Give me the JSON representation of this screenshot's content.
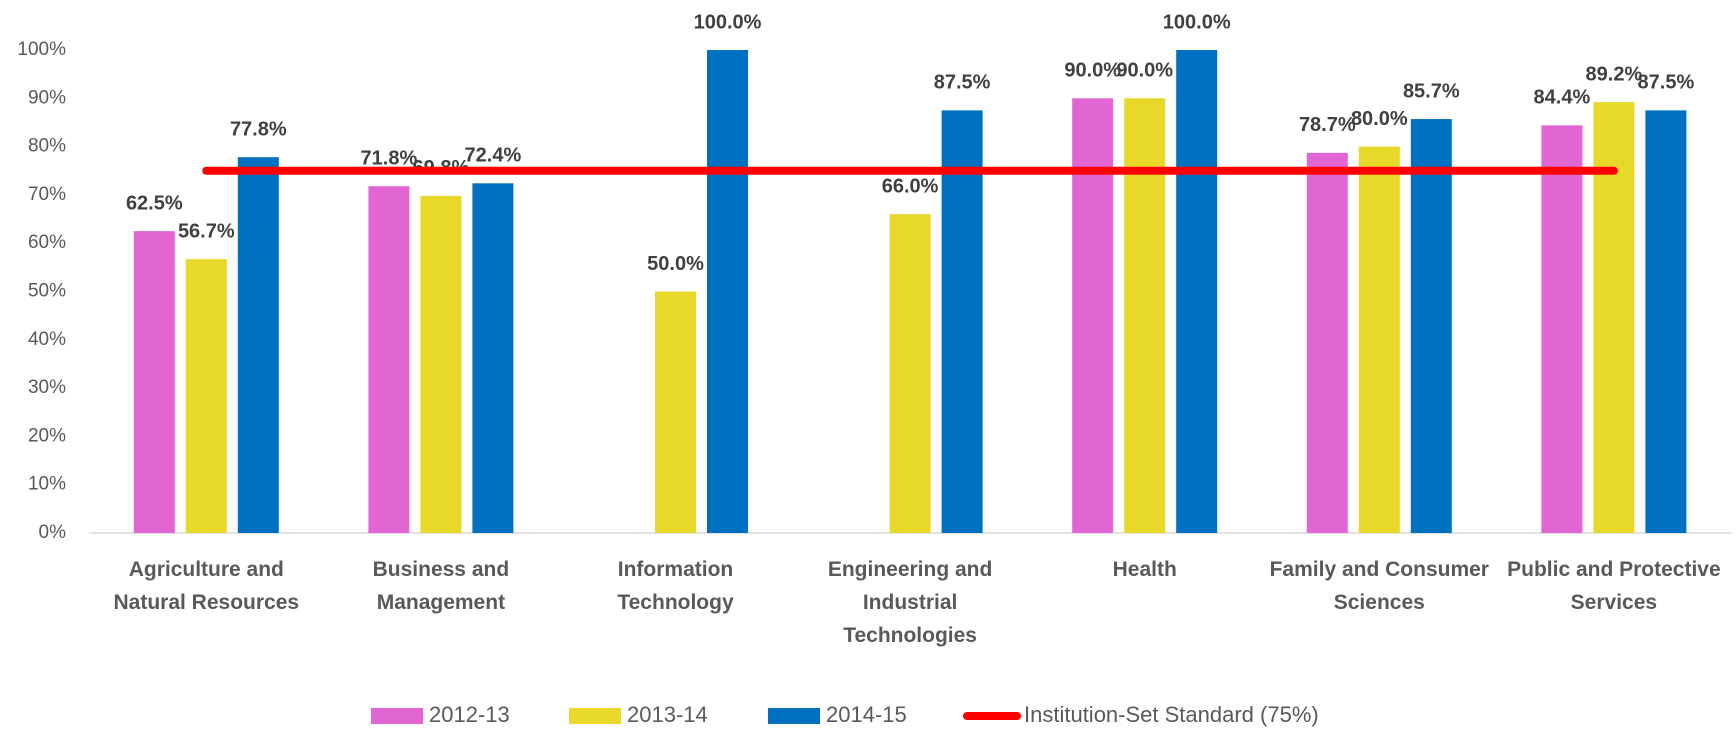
{
  "chart_data": {
    "type": "bar",
    "categories": [
      "Agriculture and Natural Resources",
      "Business and Management",
      "Information Technology",
      "Engineering and Industrial Technologies",
      "Health",
      "Family and Consumer Sciences",
      "Public and Protective Services"
    ],
    "series": [
      {
        "name": "2012-13",
        "color": "#e166d3",
        "values": [
          62.5,
          71.8,
          null,
          null,
          90.0,
          78.7,
          84.4
        ],
        "value_labels": [
          "62.5%",
          "71.8%",
          null,
          null,
          "90.0%",
          "78.7%",
          "84.4%"
        ]
      },
      {
        "name": "2013-14",
        "color": "#e8d829",
        "values": [
          56.7,
          69.8,
          50.0,
          66.0,
          90.0,
          80.0,
          89.2
        ],
        "value_labels": [
          "56.7%",
          "69.8%",
          "50.0%",
          "66.0%",
          "90.0%",
          "80.0%",
          "89.2%"
        ]
      },
      {
        "name": "2014-15",
        "color": "#0070c0",
        "values": [
          77.8,
          72.4,
          100.0,
          87.5,
          100.0,
          85.7,
          87.5
        ],
        "value_labels": [
          "77.8%",
          "72.4%",
          "100.0%",
          "87.5%",
          "100.0%",
          "85.7%",
          "87.5%"
        ]
      },
      {
        "name": "Institution-Set Standard (75%)",
        "type": "line",
        "color": "#ff0000",
        "values": [
          75,
          75,
          75,
          75,
          75,
          75,
          75
        ]
      }
    ],
    "ylim": [
      0,
      100
    ],
    "yticks": [
      {
        "value": 0,
        "label": "0%"
      },
      {
        "value": 10,
        "label": "10%"
      },
      {
        "value": 20,
        "label": "20%"
      },
      {
        "value": 30,
        "label": "30%"
      },
      {
        "value": 40,
        "label": "40%"
      },
      {
        "value": 50,
        "label": "50%"
      },
      {
        "value": 60,
        "label": "60%"
      },
      {
        "value": 70,
        "label": "70%"
      },
      {
        "value": 80,
        "label": "80%"
      },
      {
        "value": 90,
        "label": "90%"
      },
      {
        "value": 100,
        "label": "100%"
      }
    ],
    "legend": "bottom"
  }
}
